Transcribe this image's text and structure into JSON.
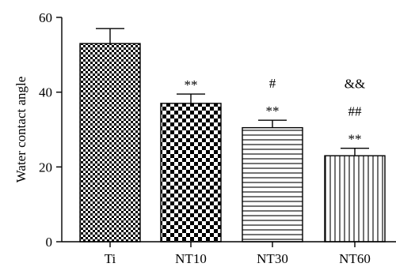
{
  "chart_data": {
    "type": "bar",
    "categories": [
      "Ti",
      "NT10",
      "NT30",
      "NT60"
    ],
    "values": [
      53,
      37,
      30.5,
      23
    ],
    "errors": [
      4,
      2.5,
      2,
      2
    ],
    "ylabel": "Water contact angle",
    "ylim": [
      0,
      60
    ],
    "yticks": [
      0,
      20,
      40,
      60
    ],
    "grid": false,
    "patterns": [
      "fine-checker",
      "coarse-checker",
      "horizontal-lines",
      "vertical-lines"
    ],
    "annotations": [
      {
        "category": "NT10",
        "lines": [
          "**"
        ]
      },
      {
        "category": "NT30",
        "lines": [
          "#",
          "**"
        ]
      },
      {
        "category": "NT60",
        "lines": [
          "&&",
          "##",
          "**"
        ]
      }
    ]
  }
}
